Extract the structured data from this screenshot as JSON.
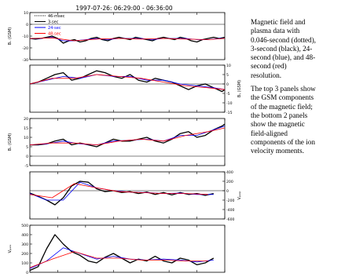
{
  "chart_data": {
    "type": "line",
    "title": "1997-07-26: 06:29:00 - 06:36:00",
    "x_range": [
      "06:29:00",
      "06:36:00"
    ],
    "legend": {
      "placement": "top-left",
      "entries": [
        {
          "label": "46-msec",
          "color": "#000000",
          "style": "dotted"
        },
        {
          "label": "3-sec",
          "color": "#000000",
          "style": "solid"
        },
        {
          "label": "24-sec",
          "color": "#0000ff",
          "style": "solid"
        },
        {
          "label": "48-sec",
          "color": "#ff0000",
          "style": "solid"
        }
      ]
    },
    "panels": [
      {
        "id": "bx",
        "ylabel": "Bₓ (GSM)",
        "ylabel_side": "left",
        "yticks": [
          "10",
          "0",
          "-10",
          "-20",
          "-30"
        ],
        "ylim": [
          -30,
          10
        ],
        "series": [
          {
            "name": "3-sec",
            "color": "#000000",
            "x": [
              0,
              0.2,
              0.4,
              0.6,
              0.8,
              1,
              1.2,
              1.4,
              1.6,
              1.8,
              2,
              2.2,
              2.4,
              2.6,
              2.8,
              3,
              3.2,
              3.4,
              3.6,
              3.8,
              4,
              4.2,
              4.4,
              4.6,
              4.8,
              5,
              5.2,
              5.4,
              5.6,
              5.8,
              6,
              6.2,
              6.4,
              6.6,
              6.8,
              7
            ],
            "y": [
              -12,
              -12.5,
              -12,
              -11,
              -10,
              -12,
              -16,
              -14,
              -13,
              -15,
              -14,
              -12,
              -11,
              -13,
              -14,
              -12,
              -11,
              -12,
              -13,
              -11,
              -12,
              -13,
              -14,
              -12,
              -11,
              -12,
              -13,
              -11,
              -12,
              -14,
              -15,
              -13,
              -12,
              -11,
              -12,
              -11
            ]
          },
          {
            "name": "24-sec",
            "color": "#0000ff",
            "x": [
              0,
              0.4,
              0.8,
              1.2,
              1.6,
              2,
              2.4,
              2.8,
              3.2,
              3.6,
              4,
              4.4,
              4.8,
              5.2,
              5.6,
              6,
              6.4,
              6.8,
              7
            ],
            "y": [
              -12,
              -12,
              -11,
              -14,
              -14,
              -13,
              -12,
              -13,
              -12,
              -12,
              -12,
              -13,
              -12,
              -12,
              -12,
              -13,
              -13,
              -12,
              -12
            ]
          },
          {
            "name": "48-sec",
            "color": "#ff0000",
            "x": [
              0,
              0.8,
              1.6,
              2.4,
              3.2,
              4,
              4.8,
              5.6,
              6.4,
              7
            ],
            "y": [
              -12,
              -11.5,
              -14,
              -12.5,
              -12,
              -12.5,
              -12,
              -12.5,
              -13,
              -12
            ]
          }
        ]
      },
      {
        "id": "by",
        "ylabel": "Bᵧ (GSM)",
        "ylabel_side": "right",
        "yticks": [
          "10",
          "5",
          "0",
          "-5",
          "-10",
          "-15"
        ],
        "ylim": [
          -15,
          10
        ],
        "series": [
          {
            "name": "3-sec",
            "color": "#000000",
            "x": [
              0,
              0.3,
              0.6,
              0.9,
              1.2,
              1.5,
              1.8,
              2.1,
              2.4,
              2.7,
              3,
              3.3,
              3.6,
              3.9,
              4.2,
              4.5,
              4.8,
              5.1,
              5.4,
              5.7,
              6,
              6.3,
              6.6,
              6.9,
              7
            ],
            "y": [
              0,
              1,
              3,
              5,
              6,
              2,
              3,
              5,
              7,
              6,
              4,
              3,
              5,
              2,
              1,
              3,
              2,
              1,
              -1,
              -3,
              -1,
              0,
              -2,
              -4,
              -3
            ]
          },
          {
            "name": "24-sec",
            "color": "#0000ff",
            "x": [
              0,
              0.6,
              1.2,
              1.8,
              2.4,
              3,
              3.6,
              4.2,
              4.8,
              5.4,
              6,
              6.6,
              7
            ],
            "y": [
              0,
              2,
              4,
              3,
              5,
              4,
              4,
              2,
              2,
              0,
              -1,
              -2,
              -3
            ]
          },
          {
            "name": "48-sec",
            "color": "#ff0000",
            "x": [
              0,
              0.8,
              1.6,
              2.4,
              3.2,
              4,
              4.8,
              5.6,
              6.4,
              7
            ],
            "y": [
              0,
              3,
              3,
              5,
              4,
              3,
              1,
              -1,
              -2,
              -3
            ]
          }
        ]
      },
      {
        "id": "bz",
        "ylabel": "Bₓ (GSM)",
        "ylabel_side": "left",
        "yticks": [
          "20",
          "15",
          "10",
          "5",
          "0",
          "-5"
        ],
        "ylim": [
          -5,
          20
        ],
        "series": [
          {
            "name": "3-sec",
            "color": "#000000",
            "x": [
              0,
              0.3,
              0.6,
              0.9,
              1.2,
              1.5,
              1.8,
              2.1,
              2.4,
              2.7,
              3,
              3.3,
              3.6,
              3.9,
              4.2,
              4.5,
              4.8,
              5.1,
              5.4,
              5.7,
              6,
              6.3,
              6.6,
              6.9,
              7
            ],
            "y": [
              6,
              6,
              6.5,
              8,
              9,
              6,
              7,
              6,
              5,
              7,
              9,
              8,
              8,
              9,
              10,
              8,
              7,
              9,
              12,
              13,
              10,
              11,
              14,
              16,
              17
            ]
          },
          {
            "name": "24-sec",
            "color": "#0000ff",
            "x": [
              0,
              0.6,
              1.2,
              1.8,
              2.4,
              3,
              3.6,
              4.2,
              4.8,
              5.4,
              6,
              6.6,
              7
            ],
            "y": [
              6,
              6.5,
              8,
              6.5,
              6,
              8,
              8.5,
              9,
              8,
              11,
              11,
              14,
              16
            ]
          },
          {
            "name": "48-sec",
            "color": "#ff0000",
            "x": [
              0,
              0.8,
              1.6,
              2.4,
              3.2,
              4,
              4.8,
              5.6,
              6.4,
              7
            ],
            "y": [
              6,
              7,
              7,
              6,
              8,
              9,
              8,
              11,
              13,
              15
            ]
          }
        ]
      },
      {
        "id": "vperp",
        "ylabel": "Vₚₑᵣₚ",
        "ylabel_side": "right",
        "yticks": [
          "400",
          "200",
          "0",
          "-200",
          "-400",
          "-600"
        ],
        "ylim": [
          -600,
          400
        ],
        "series": [
          {
            "name": "3-sec",
            "color": "#000000",
            "x": [
              0,
              0.3,
              0.6,
              0.9,
              1.2,
              1.5,
              1.8,
              2.1,
              2.4,
              2.7,
              3,
              3.3,
              3.6,
              3.9,
              4.2,
              4.5,
              4.8,
              5.1,
              5.4,
              5.7,
              6,
              6.3,
              6.6
            ],
            "y": [
              -50,
              -120,
              -200,
              -300,
              -150,
              100,
              200,
              180,
              40,
              -20,
              0,
              -40,
              -20,
              -60,
              -30,
              -80,
              -40,
              -90,
              -40,
              -80,
              -60,
              -100,
              -60
            ]
          },
          {
            "name": "24-sec",
            "color": "#0000ff",
            "x": [
              0,
              0.6,
              1.2,
              1.8,
              2.4,
              3,
              3.6,
              4.2,
              4.8,
              5.4,
              6,
              6.6
            ],
            "y": [
              -60,
              -200,
              -200,
              180,
              60,
              0,
              -30,
              -40,
              -60,
              -50,
              -80,
              -80
            ]
          },
          {
            "name": "48-sec",
            "color": "#ff0000",
            "x": [
              0,
              0.8,
              1.6,
              2.4,
              3.2,
              4,
              4.8,
              5.6,
              6.4
            ],
            "y": [
              -80,
              -150,
              150,
              60,
              -20,
              -40,
              -60,
              -60,
              -80
            ]
          }
        ]
      },
      {
        "id": "vpara",
        "ylabel": "Vₚₐᵣₐ",
        "ylabel_side": "left",
        "yticks": [
          "500",
          "400",
          "300",
          "200",
          "100",
          "0"
        ],
        "ylim": [
          0,
          500
        ],
        "series": [
          {
            "name": "3-sec",
            "color": "#000000",
            "x": [
              0,
              0.3,
              0.6,
              0.9,
              1.2,
              1.5,
              1.8,
              2.1,
              2.4,
              2.7,
              3,
              3.3,
              3.6,
              3.9,
              4.2,
              4.5,
              4.8,
              5.1,
              5.4,
              5.7,
              6,
              6.3,
              6.6
            ],
            "y": [
              20,
              60,
              250,
              400,
              300,
              220,
              180,
              120,
              100,
              160,
              200,
              150,
              100,
              140,
              120,
              170,
              120,
              100,
              150,
              130,
              80,
              100,
              150
            ]
          },
          {
            "name": "24-sec",
            "color": "#0000ff",
            "x": [
              0,
              0.6,
              1.2,
              1.8,
              2.4,
              3,
              3.6,
              4.2,
              4.8,
              5.4,
              6,
              6.6
            ],
            "y": [
              40,
              120,
              260,
              200,
              140,
              170,
              140,
              130,
              140,
              130,
              110,
              130
            ]
          },
          {
            "name": "48-sec",
            "color": "#ff0000",
            "x": [
              0,
              0.8,
              1.6,
              2.4,
              3.2,
              4,
              4.8,
              5.6,
              6.4
            ],
            "y": [
              50,
              140,
              220,
              150,
              150,
              130,
              130,
              120,
              120
            ]
          }
        ]
      }
    ]
  },
  "caption": {
    "paragraph1": [
      "Magnetic field and",
      "plasma data with",
      "0.046-second (dotted),",
      "3-second (black), 24-",
      "second (blue), and 48-",
      "second (red)",
      "resolution."
    ],
    "paragraph2": [
      "The top 3 panels show",
      "the GSM components",
      "of the magnetic field;",
      "the bottom 2 panels",
      "show the magnetic",
      "field-aligned",
      "components of the ion",
      "velocity moments."
    ]
  }
}
